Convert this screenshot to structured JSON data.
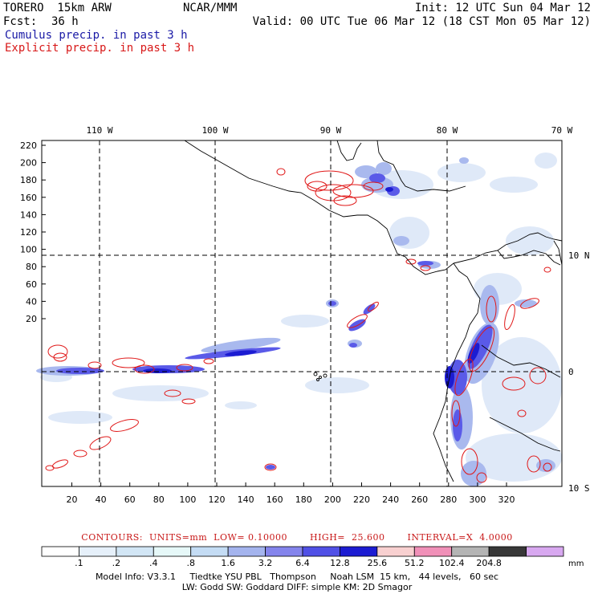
{
  "header": {
    "model": "TORERO  15km ARW",
    "org": "NCAR/MMM",
    "init": "Init: 12 UTC Sun 04 Mar 12",
    "fcst_label": "Fcst:",
    "fcst_value": "36 h",
    "valid": "Valid: 00 UTC Tue 06 Mar 12 (18 CST Mon 05 Mar 12)",
    "field1": "Cumulus precip. in past 3 h",
    "field2": "Explicit precip. in past 3 h",
    "field1_color": "#1a1aa6",
    "field2_color": "#d81818"
  },
  "map": {
    "lon_labels": [
      "110 W",
      "100 W",
      "90 W",
      "80 W",
      "70 W"
    ],
    "lat_labels": [
      "10 N",
      "0",
      "10 S"
    ],
    "y_ticks": [
      "220",
      "200",
      "180",
      "160",
      "140",
      "120",
      "100",
      "80",
      "60",
      "40",
      "20"
    ],
    "x_ticks": [
      "20",
      "40",
      "60",
      "80",
      "100",
      "120",
      "140",
      "160",
      "180",
      "200",
      "220",
      "240",
      "260",
      "280",
      "300",
      "320"
    ]
  },
  "contours": {
    "text": "CONTOURS:  UNITS=mm  LOW= 0.10000       HIGH=  25.600       INTERVAL=X  4.0000"
  },
  "colorbar": {
    "labels": [
      ".1",
      ".2",
      ".4",
      ".8",
      "1.6",
      "3.2",
      "6.4",
      "12.8",
      "25.6",
      "51.2",
      "102.4",
      "204.8"
    ],
    "unit": "mm",
    "colors": [
      "#ffffff",
      "#e6f0fa",
      "#d2e6f5",
      "#e6f8f8",
      "#c4dcf4",
      "#a4b4ee",
      "#8484ec",
      "#5050e6",
      "#1c1cd2",
      "#f8d0d0",
      "#f090b8",
      "#b4b4b4",
      "#383838",
      "#d8a8f0"
    ]
  },
  "footer": {
    "line1": "Model Info: V3.3.1     Tiedtke YSU PBL   Thompson     Noah LSM  15 km,   44 levels,   60 sec",
    "line2": "LW: Godd SW: Goddard DIFF: simple KM: 2D Smagor"
  }
}
